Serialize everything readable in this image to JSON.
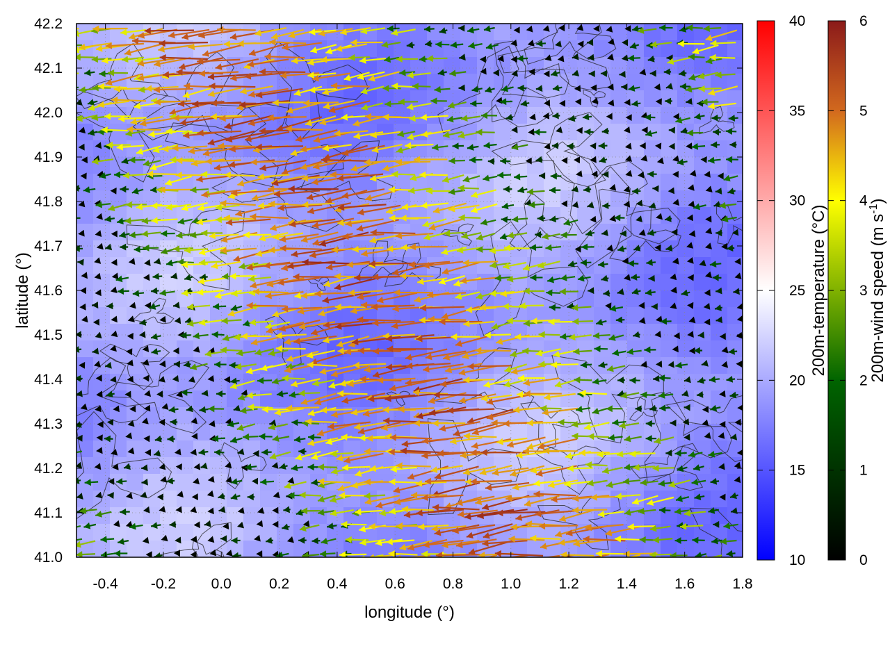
{
  "chart_data": {
    "type": "heatmap",
    "title": "",
    "xlabel": "longitude (°)",
    "ylabel": "latitude (°)",
    "xlim": [
      -0.5,
      1.8
    ],
    "ylim": [
      41.0,
      42.2
    ],
    "xticks": [
      "-0.4",
      "-0.2",
      "0.0",
      "0.2",
      "0.4",
      "0.6",
      "0.8",
      "1.0",
      "1.2",
      "1.4",
      "1.6",
      "1.8"
    ],
    "yticks": [
      "41.0",
      "41.1",
      "41.2",
      "41.3",
      "41.4",
      "41.5",
      "41.6",
      "41.7",
      "41.8",
      "41.9",
      "42.0",
      "42.1",
      "42.2"
    ],
    "grid": true,
    "heatmap": {
      "label": "200m-temperature (°C)",
      "range": [
        10,
        40
      ],
      "ticks": [
        "10",
        "15",
        "20",
        "25",
        "30",
        "35",
        "40"
      ],
      "colors": [
        "#0000ff",
        "#ffffff",
        "#ff0000"
      ],
      "typical_value": 19
    },
    "vectors": {
      "label": "200m-wind speed (m s-1)",
      "label_main": "200m-wind speed (m s",
      "label_sup": "-1",
      "label_close": ")",
      "range": [
        0,
        6
      ],
      "ticks": [
        "0",
        "1",
        "2",
        "3",
        "4",
        "5",
        "6"
      ],
      "colors": [
        "#000000",
        "#006400",
        "#ffff00",
        "#d2691e",
        "#8b1a1a"
      ],
      "direction": "from east to west (arrows pointing west)"
    },
    "contours": {
      "color": "#222222",
      "description": "terrain elevation contours"
    }
  }
}
